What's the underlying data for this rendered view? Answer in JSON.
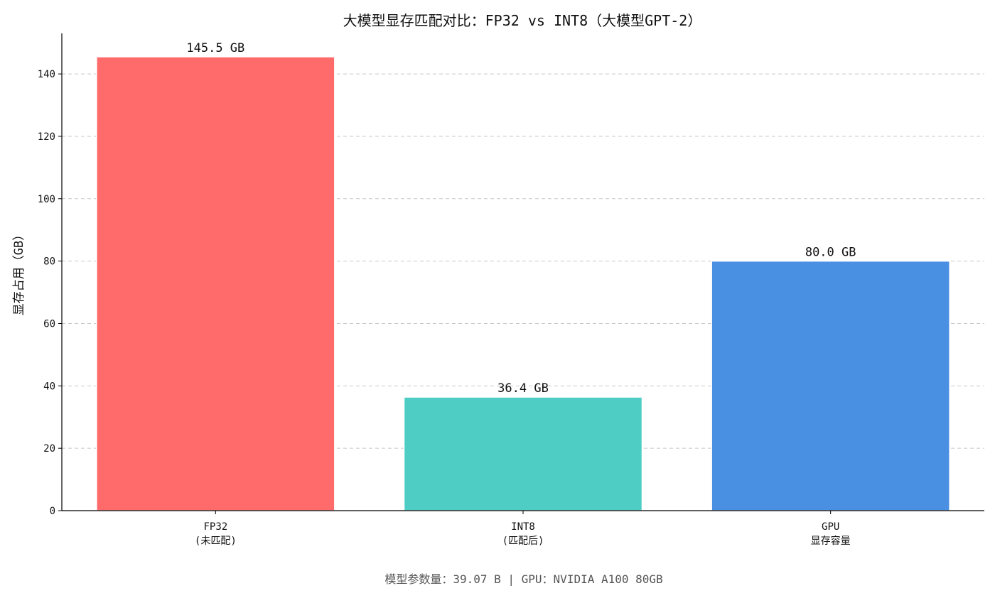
{
  "chart_data": {
    "type": "bar",
    "title": "大模型显存匹配对比：FP32 vs INT8（大模型GPT-2）",
    "ylabel": "显存占用（GB）",
    "xlabel": "",
    "categories": [
      "FP32\n(未匹配)",
      "INT8\n(匹配后)",
      "GPU\n显存容量"
    ],
    "values": [
      145.5,
      36.4,
      80.0
    ],
    "data_labels": [
      "145.5 GB",
      "36.4 GB",
      "80.0 GB"
    ],
    "colors": [
      "#ff6b6b",
      "#4ecdc4",
      "#4a90e2"
    ],
    "ylim": [
      0,
      153
    ],
    "yticks": [
      0,
      20,
      40,
      60,
      80,
      100,
      120,
      140
    ],
    "grid": "y-dashed",
    "footnote": "模型参数量：39.07 B | GPU：NVIDIA A100 80GB"
  }
}
